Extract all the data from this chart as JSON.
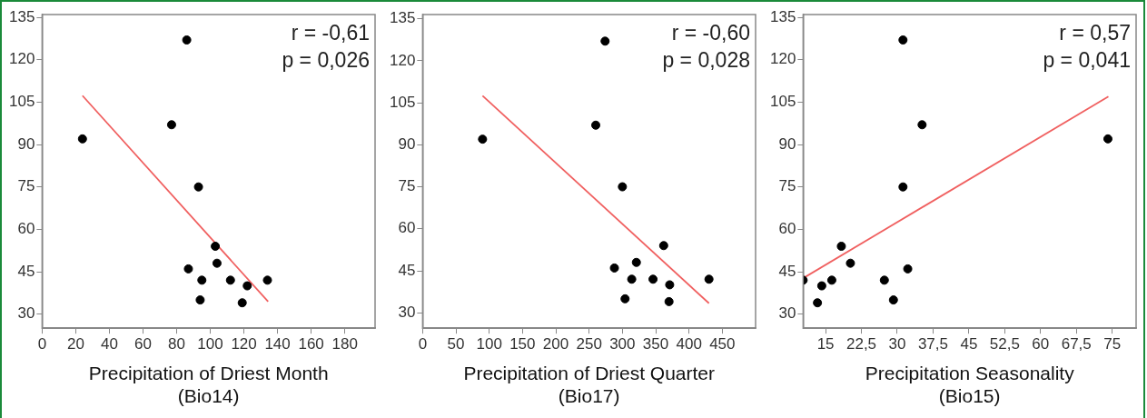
{
  "chart_data": [
    {
      "type": "scatter",
      "xlabel": "Precipitation of Driest Month (Bio14)",
      "xlim": [
        0,
        198
      ],
      "xticks": [
        0,
        20,
        40,
        60,
        80,
        100,
        120,
        140,
        160,
        180
      ],
      "ylim": [
        25,
        136
      ],
      "yticks": [
        30,
        45,
        60,
        75,
        90,
        105,
        120,
        135
      ],
      "grid": false,
      "legend": false,
      "annotations": [
        "r = -0,61",
        "p = 0,026"
      ],
      "series": [
        {
          "color": "#000000",
          "marker": "circle",
          "x": [
            24,
            86,
            77,
            93,
            103,
            104,
            87,
            95,
            112,
            122,
            134,
            94,
            119
          ],
          "values": [
            92,
            127,
            97,
            75,
            54,
            48,
            46,
            42,
            42,
            40,
            42,
            35,
            34
          ]
        },
        {
          "type": "line",
          "color": "#f06060",
          "marker": "none",
          "x": [
            24,
            134.4
          ],
          "values": [
            107.3,
            34.4
          ]
        }
      ]
    },
    {
      "type": "scatter",
      "xlabel": "Precipitation of Driest Quarter (Bio17)",
      "xlim": [
        0,
        500
      ],
      "xticks": [
        0,
        50,
        100,
        150,
        200,
        250,
        300,
        350,
        400,
        450
      ],
      "ylim": [
        24.5,
        136.5
      ],
      "yticks": [
        30,
        45,
        60,
        75,
        90,
        105,
        120,
        135
      ],
      "grid": false,
      "legend": false,
      "annotations": [
        "r = -0,60",
        "p = 0,028"
      ],
      "series": [
        {
          "color": "#000000",
          "marker": "circle",
          "x": [
            90,
            274,
            260,
            300,
            362,
            321,
            288,
            314,
            346,
            371,
            430,
            304,
            370
          ],
          "values": [
            92,
            127,
            97,
            75,
            54,
            48,
            46,
            42,
            42,
            40,
            42,
            35,
            34
          ]
        },
        {
          "type": "line",
          "color": "#f06060",
          "marker": "none",
          "x": [
            90,
            430
          ],
          "values": [
            107.5,
            33.4
          ]
        }
      ]
    },
    {
      "type": "scatter",
      "xlabel": "Precipitation Seasonality (Bio15)",
      "xlim": [
        10.3,
        80
      ],
      "xticks": [
        15,
        {
          "value": 22.5,
          "label": "22,5"
        },
        30,
        {
          "value": 37.5,
          "label": "37,5"
        },
        45,
        {
          "value": 52.5,
          "label": "52,5"
        },
        60,
        {
          "value": 67.5,
          "label": "67,5"
        },
        75
      ],
      "ylim": [
        25,
        136
      ],
      "yticks": [
        30,
        45,
        60,
        75,
        90,
        105,
        120,
        135
      ],
      "grid": false,
      "legend": false,
      "annotations": [
        "r = 0,57",
        "p = 0,041"
      ],
      "series": [
        {
          "color": "#000000",
          "marker": "circle",
          "x": [
            10.3,
            13.3,
            14.2,
            16.3,
            18.3,
            20.2,
            27.3,
            29.2,
            31.2,
            31.2,
            32.2,
            35.2,
            74.1
          ],
          "values": [
            42,
            34,
            40,
            42,
            54,
            48,
            42,
            35,
            127,
            75,
            46,
            97,
            92
          ]
        },
        {
          "type": "line",
          "color": "#f06060",
          "marker": "none",
          "x": [
            10.3,
            74.2
          ],
          "values": [
            42.7,
            107
          ]
        }
      ]
    }
  ]
}
